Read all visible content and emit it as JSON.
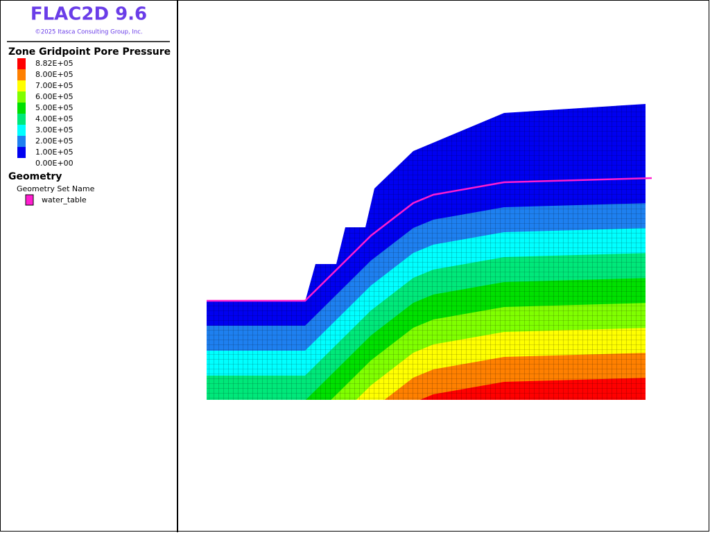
{
  "header": {
    "title": "FLAC2D 9.6",
    "copyright": "©2025 Itasca Consulting Group, Inc."
  },
  "legend": {
    "title": "Zone Gridpoint Pore Pressure",
    "labels": [
      "8.82E+05",
      "8.00E+05",
      "7.00E+05",
      "6.00E+05",
      "5.00E+05",
      "4.00E+05",
      "3.00E+05",
      "2.00E+05",
      "1.00E+05",
      "0.00E+00"
    ],
    "colors": [
      "#ff0000",
      "#ff8000",
      "#ffff00",
      "#80ff00",
      "#00e000",
      "#00e87a",
      "#00ffff",
      "#1e80f0",
      "#0000f0"
    ]
  },
  "geometry": {
    "title": "Geometry",
    "subtitle": "Geometry Set Name",
    "items": [
      {
        "label": "water_table",
        "color": "#ff1ecf"
      }
    ]
  }
}
